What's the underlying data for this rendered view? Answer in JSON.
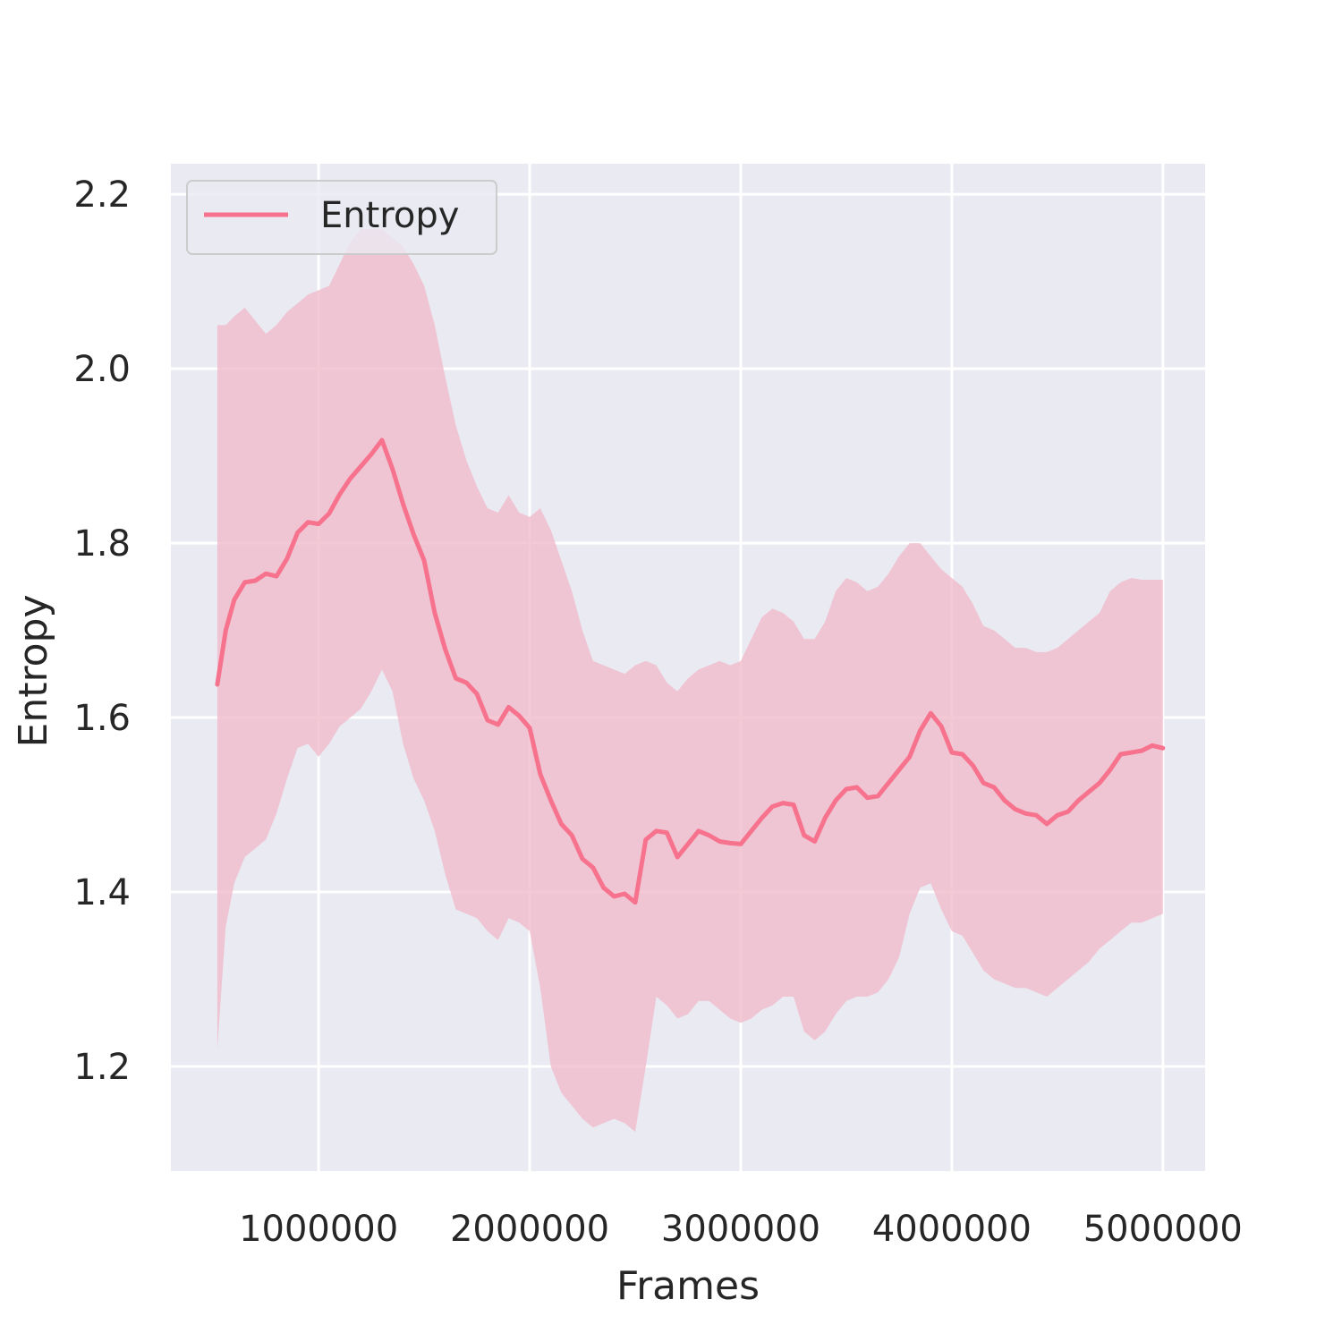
{
  "chart_data": {
    "type": "line",
    "title": "",
    "xlabel": "Frames",
    "ylabel": "Entropy",
    "xlim": [
      300000,
      5200000
    ],
    "ylim": [
      1.08,
      2.235
    ],
    "xticks": [
      1000000,
      2000000,
      3000000,
      4000000,
      5000000
    ],
    "xtick_labels": [
      "1000000",
      "2000000",
      "3000000",
      "4000000",
      "5000000"
    ],
    "yticks": [
      1.2,
      1.4,
      1.6,
      1.8,
      2.0,
      2.2
    ],
    "ytick_labels": [
      "1.2",
      "1.4",
      "1.6",
      "1.8",
      "2.0",
      "2.2"
    ],
    "grid": true,
    "legend": {
      "position": "top-left",
      "entries": [
        "Entropy"
      ]
    },
    "colors": {
      "line": "#f6728d",
      "band": "#f0b7c8",
      "background": "#eaeaf2",
      "grid": "#ffffff"
    },
    "series": [
      {
        "name": "Entropy",
        "x": [
          520000,
          560000,
          600000,
          650000,
          700000,
          750000,
          800000,
          850000,
          900000,
          950000,
          1000000,
          1050000,
          1100000,
          1150000,
          1200000,
          1250000,
          1300000,
          1350000,
          1400000,
          1450000,
          1500000,
          1550000,
          1600000,
          1650000,
          1700000,
          1750000,
          1800000,
          1850000,
          1900000,
          1950000,
          2000000,
          2050000,
          2100000,
          2150000,
          2200000,
          2250000,
          2300000,
          2350000,
          2400000,
          2450000,
          2500000,
          2550000,
          2600000,
          2650000,
          2700000,
          2750000,
          2800000,
          2850000,
          2900000,
          2950000,
          3000000,
          3050000,
          3100000,
          3150000,
          3200000,
          3250000,
          3300000,
          3350000,
          3400000,
          3450000,
          3500000,
          3550000,
          3600000,
          3650000,
          3700000,
          3750000,
          3800000,
          3850000,
          3900000,
          3950000,
          4000000,
          4050000,
          4100000,
          4150000,
          4200000,
          4250000,
          4300000,
          4350000,
          4400000,
          4450000,
          4500000,
          4550000,
          4600000,
          4650000,
          4700000,
          4750000,
          4800000,
          4850000,
          4900000,
          4950000,
          5000000
        ],
        "mean": [
          1.638,
          1.7,
          1.735,
          1.755,
          1.757,
          1.765,
          1.762,
          1.782,
          1.812,
          1.824,
          1.822,
          1.834,
          1.856,
          1.874,
          1.888,
          1.902,
          1.918,
          1.885,
          1.845,
          1.81,
          1.78,
          1.72,
          1.678,
          1.645,
          1.64,
          1.627,
          1.597,
          1.592,
          1.612,
          1.602,
          1.588,
          1.535,
          1.505,
          1.478,
          1.465,
          1.438,
          1.428,
          1.405,
          1.395,
          1.398,
          1.388,
          1.46,
          1.47,
          1.468,
          1.44,
          1.455,
          1.47,
          1.465,
          1.458,
          1.456,
          1.455,
          1.47,
          1.485,
          1.498,
          1.502,
          1.5,
          1.465,
          1.458,
          1.485,
          1.505,
          1.518,
          1.52,
          1.508,
          1.51,
          1.525,
          1.54,
          1.555,
          1.585,
          1.605,
          1.59,
          1.56,
          1.558,
          1.545,
          1.525,
          1.52,
          1.505,
          1.495,
          1.49,
          1.488,
          1.478,
          1.488,
          1.492,
          1.505,
          1.515,
          1.525,
          1.54,
          1.558,
          1.56,
          1.562,
          1.568,
          1.565
        ],
        "upper": [
          2.05,
          2.05,
          2.06,
          2.07,
          2.055,
          2.04,
          2.05,
          2.065,
          2.075,
          2.085,
          2.09,
          2.095,
          2.12,
          2.145,
          2.16,
          2.16,
          2.16,
          2.15,
          2.14,
          2.12,
          2.095,
          2.05,
          1.99,
          1.935,
          1.895,
          1.865,
          1.84,
          1.835,
          1.855,
          1.835,
          1.83,
          1.84,
          1.815,
          1.78,
          1.745,
          1.7,
          1.665,
          1.66,
          1.655,
          1.65,
          1.66,
          1.665,
          1.66,
          1.64,
          1.63,
          1.645,
          1.655,
          1.66,
          1.665,
          1.66,
          1.665,
          1.69,
          1.715,
          1.725,
          1.72,
          1.71,
          1.69,
          1.69,
          1.71,
          1.745,
          1.76,
          1.755,
          1.745,
          1.75,
          1.765,
          1.785,
          1.8,
          1.8,
          1.785,
          1.77,
          1.76,
          1.75,
          1.73,
          1.705,
          1.7,
          1.69,
          1.68,
          1.68,
          1.675,
          1.675,
          1.68,
          1.69,
          1.7,
          1.71,
          1.72,
          1.745,
          1.755,
          1.76,
          1.758,
          1.758,
          1.758
        ],
        "lower": [
          1.22,
          1.36,
          1.41,
          1.44,
          1.45,
          1.46,
          1.49,
          1.53,
          1.565,
          1.57,
          1.555,
          1.57,
          1.59,
          1.6,
          1.61,
          1.63,
          1.655,
          1.63,
          1.57,
          1.53,
          1.505,
          1.47,
          1.42,
          1.38,
          1.375,
          1.37,
          1.355,
          1.345,
          1.37,
          1.365,
          1.355,
          1.29,
          1.2,
          1.17,
          1.155,
          1.14,
          1.13,
          1.135,
          1.14,
          1.135,
          1.125,
          1.2,
          1.28,
          1.27,
          1.255,
          1.26,
          1.275,
          1.275,
          1.265,
          1.255,
          1.25,
          1.255,
          1.265,
          1.27,
          1.28,
          1.28,
          1.24,
          1.23,
          1.24,
          1.26,
          1.275,
          1.28,
          1.28,
          1.285,
          1.3,
          1.325,
          1.375,
          1.405,
          1.41,
          1.38,
          1.355,
          1.35,
          1.33,
          1.31,
          1.3,
          1.295,
          1.29,
          1.29,
          1.285,
          1.28,
          1.29,
          1.3,
          1.31,
          1.32,
          1.335,
          1.345,
          1.355,
          1.365,
          1.365,
          1.37,
          1.375
        ]
      }
    ]
  }
}
